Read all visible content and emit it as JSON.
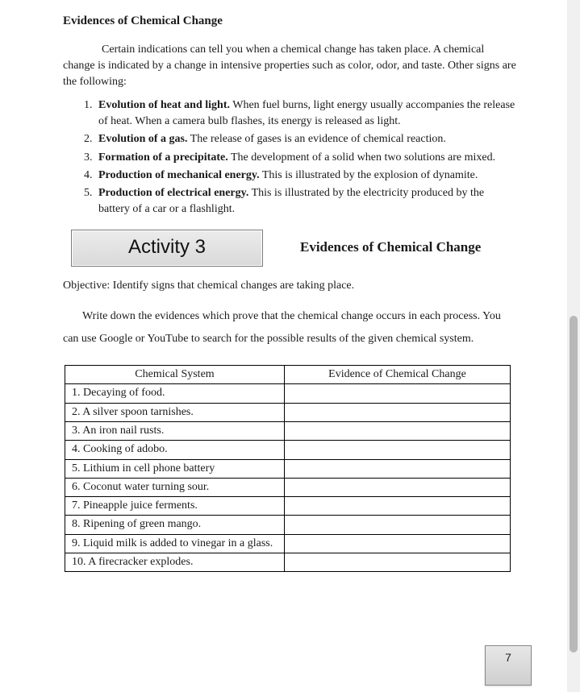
{
  "heading": "Evidences of Chemical Change",
  "intro": "Certain indications can tell you when a chemical change has taken place. A chemical change is indicated by a change in intensive properties such as color, odor, and taste. Other signs are the following:",
  "signs": [
    {
      "title": "Evolution of heat and light.",
      "body": " When fuel burns, light energy usually accompanies the release of heat. When a camera bulb flashes, its energy is released as light."
    },
    {
      "title": "Evolution of a gas.",
      "body": " The release of gases is an evidence of chemical reaction."
    },
    {
      "title": "Formation of a precipitate.",
      "body": " The development of a solid when two solutions are mixed."
    },
    {
      "title": "Production of mechanical energy.",
      "body": " This is illustrated by the explosion of dynamite."
    },
    {
      "title": "Production of electrical energy.",
      "body": " This is illustrated by the electricity produced by the battery of a car or a flashlight."
    }
  ],
  "activity": {
    "badge": "Activity 3",
    "title": "Evidences of Chemical Change"
  },
  "objective": "Objective: Identify signs that chemical changes are taking place.",
  "instructions": "Write down the evidences which prove that the chemical change occurs in each process. You can use Google or YouTube to search for the possible results of the given chemical system.",
  "table": {
    "col1": "Chemical System",
    "col2": "Evidence of Chemical Change",
    "rows": [
      {
        "system": "1.  Decaying of food.",
        "evidence": ""
      },
      {
        "system": "2.  A silver spoon tarnishes.",
        "evidence": ""
      },
      {
        "system": "3.  An iron nail rusts.",
        "evidence": ""
      },
      {
        "system": "4.  Cooking of adobo.",
        "evidence": ""
      },
      {
        "system": "5.  Lithium in cell phone battery",
        "evidence": ""
      },
      {
        "system": "6.  Coconut water turning sour.",
        "evidence": ""
      },
      {
        "system": "7.  Pineapple juice ferments.",
        "evidence": ""
      },
      {
        "system": "8.  Ripening of green mango.",
        "evidence": ""
      },
      {
        "system": "9.  Liquid milk is added to vinegar in a glass.",
        "evidence": ""
      },
      {
        "system": "10. A firecracker explodes.",
        "evidence": ""
      }
    ]
  },
  "page_number": "7"
}
